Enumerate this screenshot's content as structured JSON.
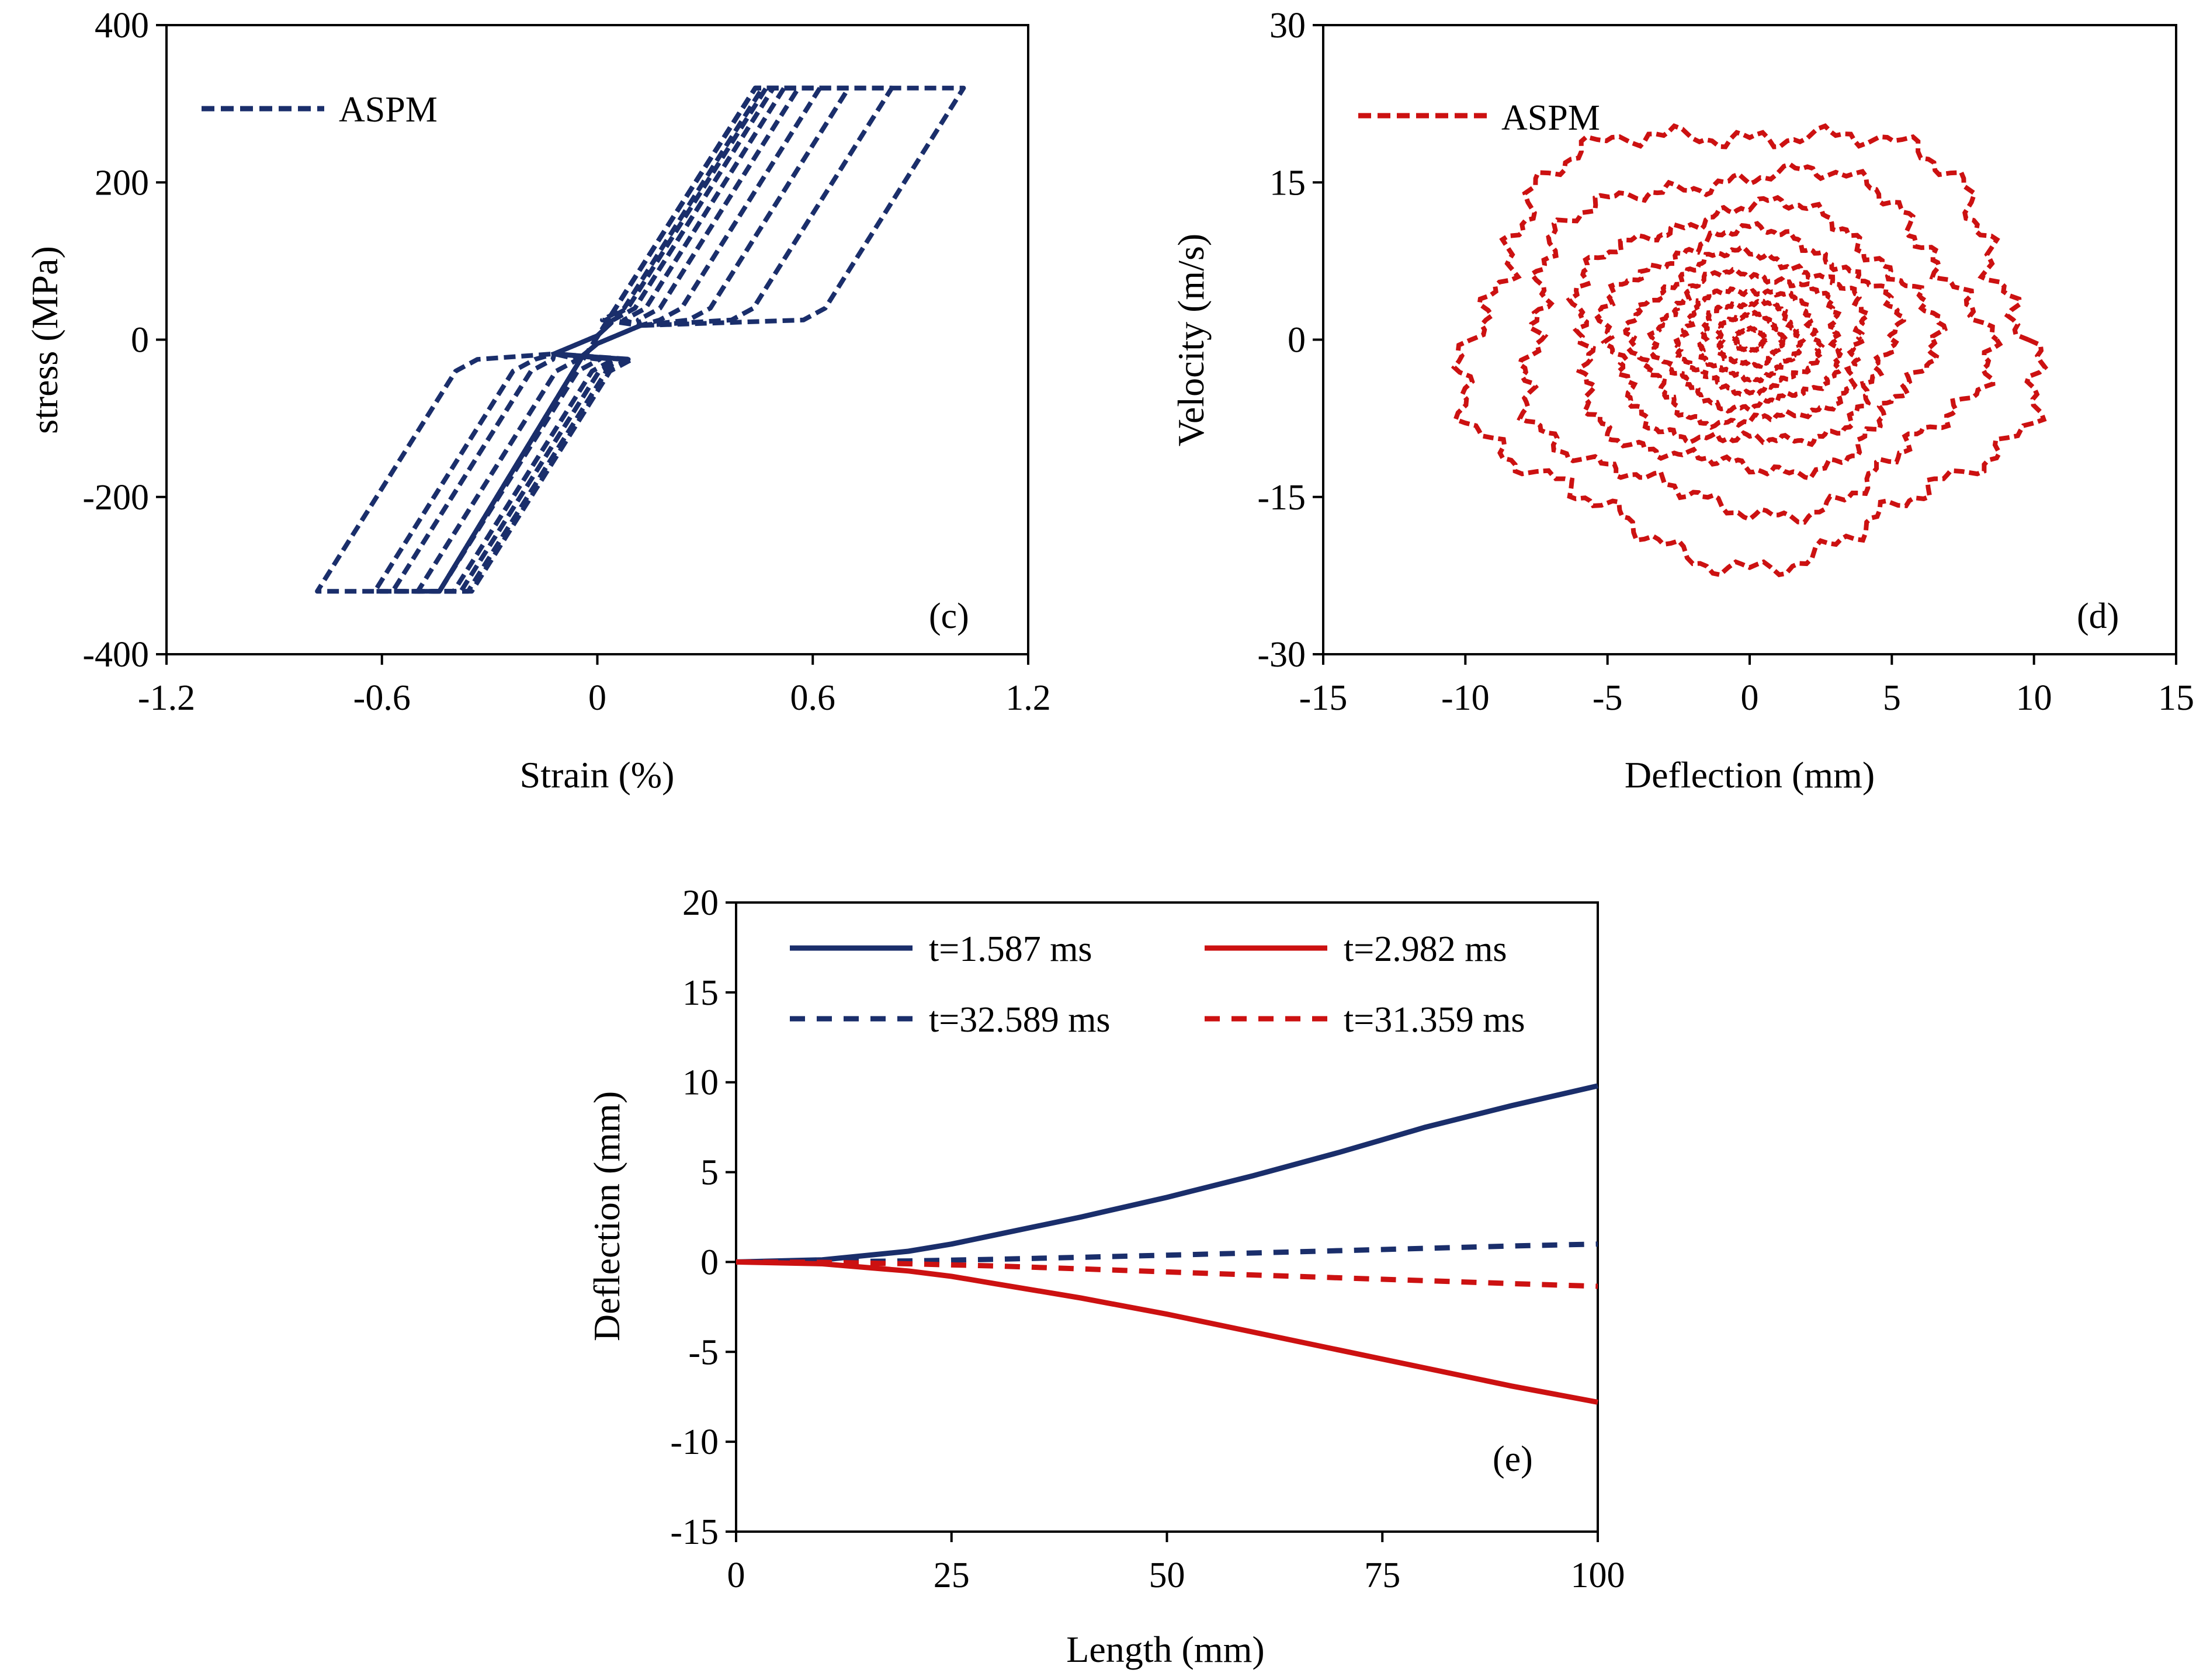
{
  "colors": {
    "navy": "#1a2e6b",
    "red": "#cc1111",
    "axis": "#000000"
  },
  "chart_data": [
    {
      "id": "c",
      "type": "line",
      "panel_label": "(c)",
      "xlabel": "Strain (%)",
      "ylabel": "stress (MPa)",
      "xlim": [
        -1.2,
        1.2
      ],
      "ylim": [
        -400,
        400
      ],
      "xticks": [
        "-1.2",
        "-0.6",
        "0",
        "0.6",
        "1.2"
      ],
      "yticks": [
        "-400",
        "-200",
        "0",
        "200",
        "400"
      ],
      "legend_position": "top-left",
      "series": [
        {
          "name": "ASPM",
          "color": "#1a2e6b",
          "style": "dashed",
          "description": "hysteresis loops of superelastic behaviour",
          "loops": [
            {
              "top_right": 1.02,
              "bottom_left": -0.78
            },
            {
              "top_right": 0.82,
              "bottom_left": -0.62
            },
            {
              "top_right": 0.7,
              "bottom_left": -0.57
            },
            {
              "top_right": 0.62,
              "bottom_left": -0.5
            },
            {
              "top_right": 0.56,
              "bottom_left": -0.44
            },
            {
              "top_right": 0.52,
              "bottom_left": -0.4
            },
            {
              "top_right": 0.49,
              "bottom_left": -0.38
            },
            {
              "top_right": 0.47,
              "bottom_left": -0.36
            },
            {
              "top_right": 0.46,
              "bottom_left": -0.35
            }
          ],
          "stress_upper_plateau": 320,
          "stress_lower_plateau_pos": 25,
          "stress_upper_plateau_neg": -320,
          "stress_lower_plateau_neg": -25
        }
      ]
    },
    {
      "id": "d",
      "type": "line",
      "panel_label": "(d)",
      "xlabel": "Deflection (mm)",
      "ylabel": "Velocity (m/s)",
      "xlim": [
        -15,
        15
      ],
      "ylim": [
        -30,
        30
      ],
      "xticks": [
        "-15",
        "-10",
        "-5",
        "0",
        "5",
        "10",
        "15"
      ],
      "yticks": [
        "-30",
        "-15",
        "0",
        "15",
        "30"
      ],
      "legend_position": "top-left",
      "series": [
        {
          "name": "ASPM",
          "color": "#cc1111",
          "style": "dashed",
          "description": "phase-plane spiral decaying to origin",
          "orbits": [
            {
              "amp_x": 9.8,
              "amp_y": 20.5
            },
            {
              "amp_x": 8.0,
              "amp_y": 16.0
            },
            {
              "amp_x": 6.2,
              "amp_y": 12.5
            },
            {
              "amp_x": 5.0,
              "amp_y": 10.0
            },
            {
              "amp_x": 4.0,
              "amp_y": 8.0
            },
            {
              "amp_x": 3.2,
              "amp_y": 6.3
            },
            {
              "amp_x": 2.4,
              "amp_y": 4.8
            },
            {
              "amp_x": 1.7,
              "amp_y": 3.6
            },
            {
              "amp_x": 1.1,
              "amp_y": 2.4
            },
            {
              "amp_x": 0.5,
              "amp_y": 1.0
            }
          ]
        }
      ]
    },
    {
      "id": "e",
      "type": "line",
      "panel_label": "(e)",
      "xlabel": "Length (mm)",
      "ylabel": "Deflection (mm)",
      "xlim": [
        0,
        100
      ],
      "ylim": [
        -15,
        20
      ],
      "xticks": [
        "0",
        "25",
        "50",
        "75",
        "100"
      ],
      "yticks": [
        "-15",
        "-10",
        "-5",
        "0",
        "5",
        "10",
        "15",
        "20"
      ],
      "legend_position": "top",
      "series": [
        {
          "name": "t=1.587 ms",
          "color": "#1a2e6b",
          "style": "solid",
          "x": [
            0,
            10,
            20,
            25,
            30,
            40,
            50,
            60,
            70,
            75,
            80,
            90,
            100
          ],
          "y": [
            0,
            0.12,
            0.6,
            1.0,
            1.5,
            2.5,
            3.6,
            4.8,
            6.1,
            6.8,
            7.5,
            8.7,
            9.8
          ]
        },
        {
          "name": "t=2.982 ms",
          "color": "#cc1111",
          "style": "solid",
          "x": [
            0,
            10,
            20,
            25,
            30,
            40,
            50,
            60,
            70,
            75,
            80,
            90,
            100
          ],
          "y": [
            0,
            -0.1,
            -0.5,
            -0.8,
            -1.2,
            -2.0,
            -2.9,
            -3.9,
            -4.9,
            -5.4,
            -5.9,
            -6.9,
            -7.8
          ]
        },
        {
          "name": "t=32.589 ms",
          "color": "#1a2e6b",
          "style": "dashed",
          "x": [
            0,
            10,
            20,
            30,
            40,
            50,
            60,
            70,
            80,
            90,
            100
          ],
          "y": [
            0,
            0.01,
            0.06,
            0.15,
            0.26,
            0.38,
            0.5,
            0.63,
            0.76,
            0.89,
            1.0
          ]
        },
        {
          "name": "t=31.359 ms",
          "color": "#cc1111",
          "style": "dashed",
          "x": [
            0,
            10,
            20,
            30,
            40,
            50,
            60,
            70,
            80,
            90,
            100
          ],
          "y": [
            0,
            -0.02,
            -0.1,
            -0.22,
            -0.38,
            -0.55,
            -0.72,
            -0.88,
            -1.04,
            -1.2,
            -1.35
          ]
        }
      ]
    }
  ]
}
